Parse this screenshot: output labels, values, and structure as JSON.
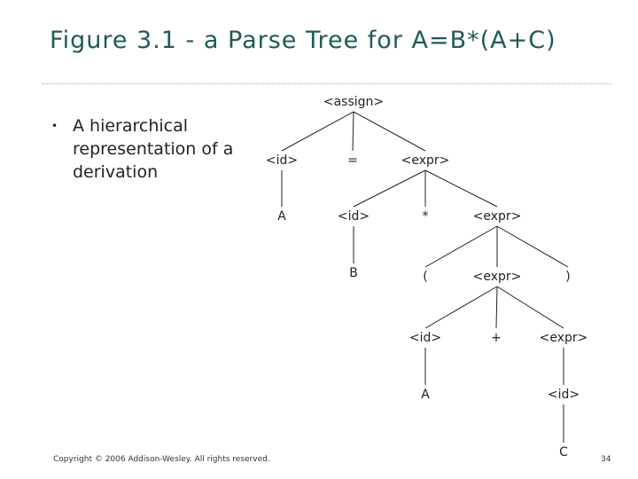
{
  "title": "Figure 3.1 - a Parse Tree for A=B*(A+C)",
  "bullet": "A hierarchical representation of a derivation",
  "tree": {
    "nodes": [
      "<assign>",
      "<id>",
      "=",
      "<expr>",
      "A",
      "<id>",
      "*",
      "<expr>",
      "B",
      "(",
      "<expr>",
      ")",
      "<id>",
      "+",
      "<expr>",
      "A",
      "<id>",
      "C"
    ]
  },
  "footer": "Copyright © 2006 Addison-Wesley. All rights reserved.",
  "page_number": "34"
}
